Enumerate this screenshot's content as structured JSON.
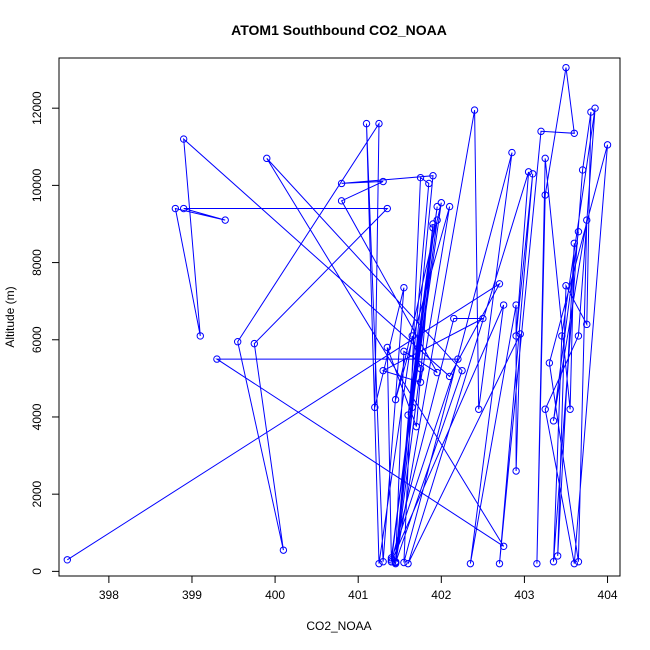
{
  "chart_data": {
    "type": "line",
    "title": "ATOM1 Southbound CO2_NOAA",
    "xlabel": "CO2_NOAA",
    "ylabel": "Altitude (m)",
    "xlim": [
      397.4,
      404.15
    ],
    "ylim": [
      -120,
      13300
    ],
    "xticks": [
      398,
      399,
      400,
      401,
      402,
      403,
      404
    ],
    "yticks": [
      0,
      2000,
      4000,
      6000,
      8000,
      10000,
      12000
    ],
    "series_color": "#0000ff",
    "markers": "open-circle",
    "points": [
      [
        397.5,
        300
      ],
      [
        402.7,
        7450
      ],
      [
        402.1,
        5050
      ],
      [
        398.9,
        11200
      ],
      [
        399.1,
        6100
      ],
      [
        398.8,
        9400
      ],
      [
        399.4,
        9100
      ],
      [
        398.9,
        9400
      ],
      [
        401.35,
        9400
      ],
      [
        399.75,
        5900
      ],
      [
        400.1,
        550
      ],
      [
        399.55,
        5950
      ],
      [
        401.25,
        11600
      ],
      [
        401.2,
        4250
      ],
      [
        401.55,
        7350
      ],
      [
        401.3,
        250
      ],
      [
        401.1,
        11600
      ],
      [
        401.25,
        200
      ],
      [
        401.65,
        6100
      ],
      [
        401.75,
        5250
      ],
      [
        401.45,
        200
      ],
      [
        401.4,
        300
      ],
      [
        402.2,
        5500
      ],
      [
        399.3,
        5500
      ],
      [
        402.75,
        650
      ],
      [
        399.9,
        10700
      ],
      [
        402.25,
        5200
      ],
      [
        401.45,
        230
      ],
      [
        402.4,
        11950
      ],
      [
        402.45,
        4200
      ],
      [
        402.85,
        10850
      ],
      [
        401.55,
        230
      ],
      [
        401.75,
        10200
      ],
      [
        401.85,
        10050
      ],
      [
        401.45,
        230
      ],
      [
        401.9,
        10250
      ],
      [
        400.8,
        10050
      ],
      [
        401.3,
        10100
      ],
      [
        400.8,
        9600
      ],
      [
        401.95,
        5150
      ],
      [
        401.55,
        5700
      ],
      [
        401.45,
        250
      ],
      [
        401.9,
        9000
      ],
      [
        401.7,
        3750
      ],
      [
        401.35,
        5800
      ],
      [
        401.4,
        250
      ],
      [
        401.9,
        8900
      ],
      [
        401.6,
        4050
      ],
      [
        401.95,
        9450
      ],
      [
        401.4,
        350
      ],
      [
        401.95,
        9100
      ],
      [
        401.65,
        4250
      ],
      [
        402.0,
        9550
      ],
      [
        401.45,
        4450
      ],
      [
        402.1,
        9450
      ],
      [
        401.75,
        4900
      ],
      [
        401.3,
        5200
      ],
      [
        402.5,
        6550
      ],
      [
        402.15,
        6550
      ],
      [
        401.4,
        250
      ],
      [
        402.75,
        6900
      ],
      [
        402.35,
        200
      ],
      [
        402.9,
        6900
      ],
      [
        402.9,
        2600
      ],
      [
        402.95,
        6150
      ],
      [
        401.6,
        200
      ],
      [
        403.05,
        10350
      ],
      [
        402.9,
        6100
      ],
      [
        403.1,
        10300
      ],
      [
        402.7,
        200
      ],
      [
        403.2,
        11400
      ],
      [
        403.6,
        11350
      ],
      [
        403.5,
        13050
      ],
      [
        403.25,
        9750
      ],
      [
        403.15,
        200
      ],
      [
        403.25,
        10700
      ],
      [
        403.55,
        4200
      ],
      [
        403.6,
        8500
      ],
      [
        403.4,
        400
      ],
      [
        403.5,
        7400
      ],
      [
        403.75,
        6400
      ],
      [
        403.8,
        11900
      ],
      [
        403.7,
        10400
      ],
      [
        403.35,
        250
      ],
      [
        403.45,
        6100
      ],
      [
        403.85,
        12000
      ],
      [
        403.65,
        6100
      ],
      [
        403.25,
        4200
      ],
      [
        403.6,
        200
      ],
      [
        404.0,
        11050
      ],
      [
        403.3,
        5400
      ],
      [
        403.65,
        250
      ],
      [
        403.75,
        9100
      ],
      [
        403.35,
        3900
      ],
      [
        403.65,
        8800
      ]
    ]
  }
}
